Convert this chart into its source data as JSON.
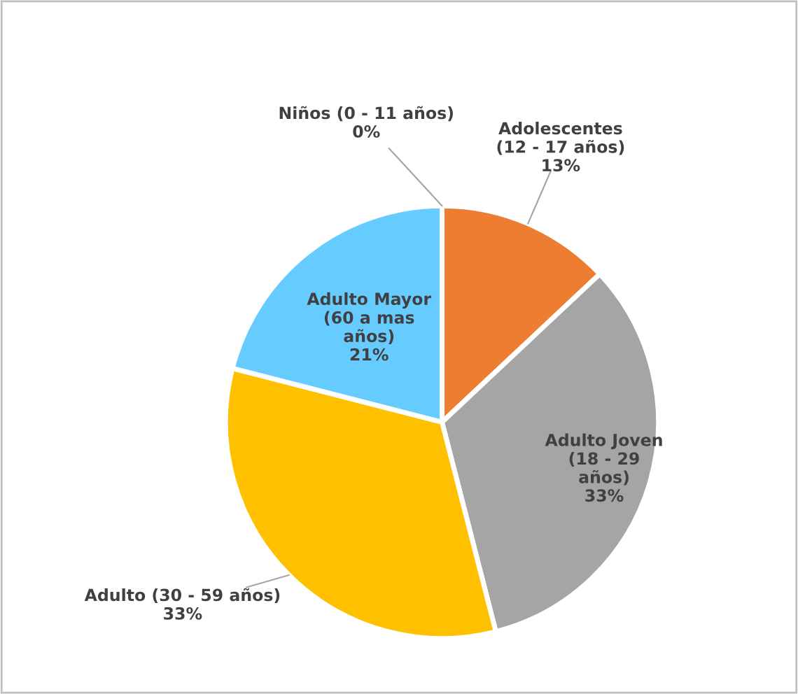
{
  "chart_data": {
    "type": "pie",
    "categories": [
      "Niños (0 - 11 años)",
      "Adolescentes (12 - 17 años)",
      "Adulto Joven (18 - 29 años)",
      "Adulto (30 - 59 años)",
      "Adulto Mayor (60 a mas años)"
    ],
    "values": [
      0,
      13,
      33,
      33,
      21
    ],
    "value_labels": [
      "0%",
      "13%",
      "33%",
      "33%",
      "21%"
    ],
    "colors": [
      "#4472c4",
      "#ed7d31",
      "#a5a5a5",
      "#ffc000",
      "#66ccff"
    ],
    "legend": false
  }
}
